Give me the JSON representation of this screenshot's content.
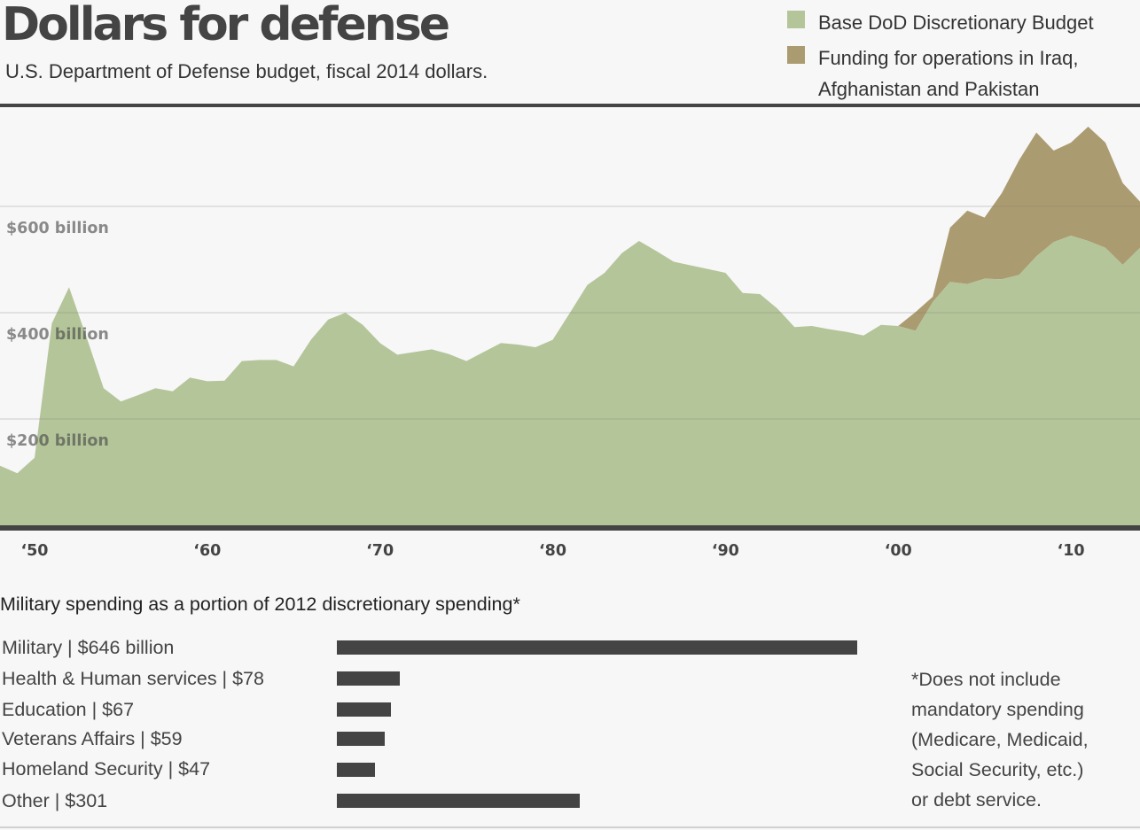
{
  "header": {
    "title": "Dollars for defense",
    "subtitle": "U.S. Department of Defense budget, fiscal 2014 dollars."
  },
  "legend": [
    {
      "lines": [
        "Base DoD Discretionary Budget"
      ],
      "color": "#b4c59a"
    },
    {
      "lines": [
        "Funding for operations in Iraq,",
        "Afghanistan and Pakistan"
      ],
      "color": "#ab9b70"
    }
  ],
  "chart_data": [
    {
      "type": "area",
      "stacked": true,
      "ylim": [
        0,
        800
      ],
      "xlim": [
        1948,
        2014
      ],
      "grid": true,
      "y_ticks": [
        {
          "value": 200,
          "label": "$200 billion"
        },
        {
          "value": 400,
          "label": "$400 billion"
        },
        {
          "value": 600,
          "label": "$600 billion"
        }
      ],
      "x_ticks": [
        {
          "value": 1950,
          "label": "‘50"
        },
        {
          "value": 1960,
          "label": "‘60"
        },
        {
          "value": 1970,
          "label": "‘70"
        },
        {
          "value": 1980,
          "label": "‘80"
        },
        {
          "value": 1990,
          "label": "‘90"
        },
        {
          "value": 2000,
          "label": "‘00"
        },
        {
          "value": 2010,
          "label": "‘10"
        }
      ],
      "x": [
        1948,
        1949,
        1950,
        1951,
        1952,
        1953,
        1954,
        1955,
        1956,
        1957,
        1958,
        1959,
        1960,
        1961,
        1962,
        1963,
        1964,
        1965,
        1966,
        1967,
        1968,
        1969,
        1970,
        1971,
        1972,
        1973,
        1974,
        1975,
        1976,
        1977,
        1978,
        1979,
        1980,
        1981,
        1982,
        1983,
        1984,
        1985,
        1986,
        1987,
        1988,
        1989,
        1990,
        1991,
        1992,
        1993,
        1994,
        1995,
        1996,
        1997,
        1998,
        1999,
        2000,
        2001,
        2002,
        2003,
        2004,
        2005,
        2006,
        2007,
        2008,
        2009,
        2010,
        2011,
        2012,
        2013,
        2014
      ],
      "series": [
        {
          "name": "Base DoD Discretionary Budget",
          "color": "#b4c59a",
          "values": [
            112,
            98,
            127,
            380,
            448,
            355,
            258,
            233,
            245,
            258,
            252,
            278,
            271,
            272,
            309,
            311,
            311,
            299,
            349,
            387,
            400,
            377,
            343,
            321,
            326,
            331,
            322,
            309,
            326,
            343,
            340,
            335,
            349,
            400,
            452,
            475,
            512,
            535,
            516,
            496,
            489,
            482,
            475,
            437,
            435,
            408,
            373,
            375,
            369,
            364,
            357,
            377,
            375,
            366,
            420,
            458,
            454,
            464,
            463,
            471,
            506,
            533,
            545,
            535,
            522,
            490,
            522
          ],
          "note": "base values in billions of fiscal 2014 dollars"
        },
        {
          "name": "Funding for operations in Iraq, Afghanistan and Pakistan",
          "color": "#ab9b70",
          "values": [
            0,
            0,
            0,
            0,
            0,
            0,
            0,
            0,
            0,
            0,
            0,
            0,
            0,
            0,
            0,
            0,
            0,
            0,
            0,
            0,
            0,
            0,
            0,
            0,
            0,
            0,
            0,
            0,
            0,
            0,
            0,
            0,
            0,
            0,
            0,
            0,
            0,
            0,
            0,
            0,
            0,
            0,
            0,
            0,
            0,
            0,
            0,
            0,
            0,
            0,
            0,
            0,
            0,
            35,
            10,
            102,
            138,
            115,
            162,
            216,
            233,
            172,
            175,
            215,
            198,
            154,
            87
          ]
        }
      ]
    },
    {
      "type": "bar",
      "title": "Military spending as a portion of 2012 discretionary spending*",
      "categories": [
        "Military | $646 billion",
        "Health & Human services | $78",
        "Education | $67",
        "Veterans Affairs | $59",
        "Homeland Security | $47",
        "Other | $301"
      ],
      "values": [
        646,
        78,
        67,
        59,
        47,
        301
      ]
    }
  ],
  "footnote": [
    "*Does not include",
    "mandatory spending",
    "(Medicare, Medicaid,",
    "Social Security, etc.)",
    "or debt service."
  ]
}
